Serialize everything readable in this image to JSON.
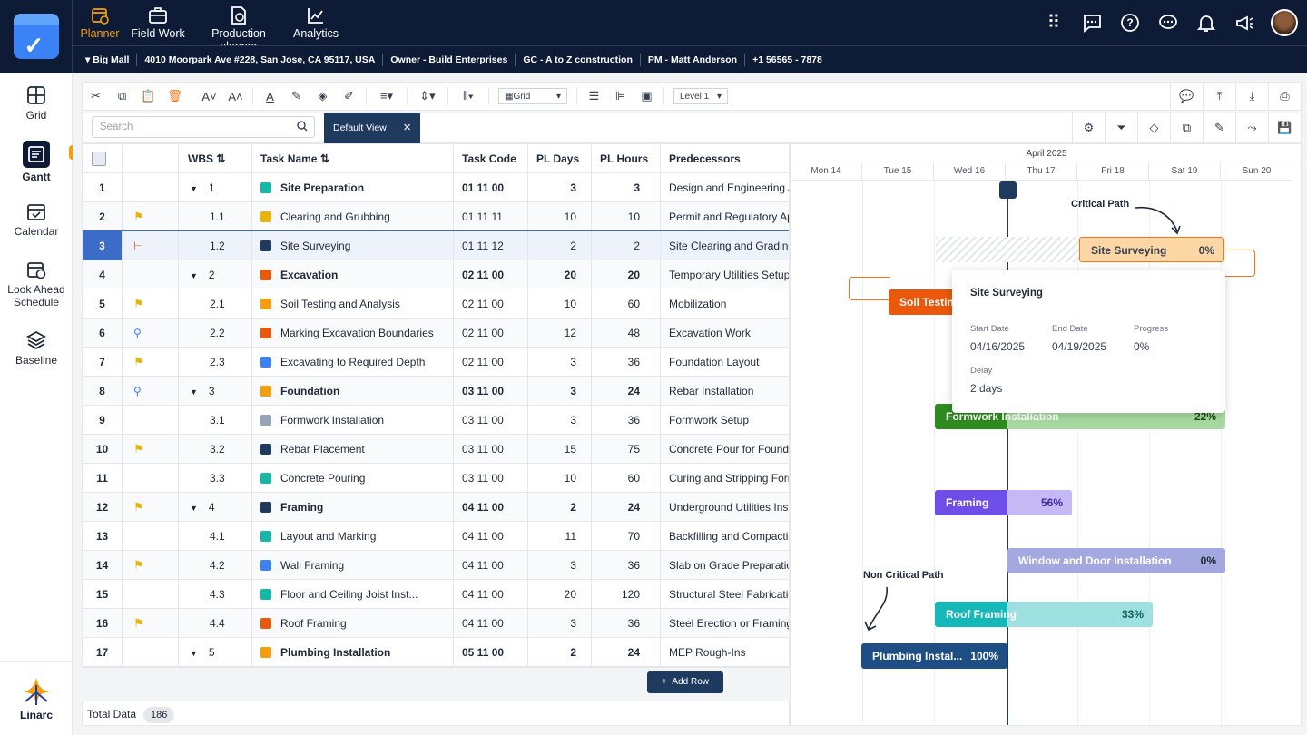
{
  "nav": {
    "tabs": [
      {
        "label": "Planner",
        "active": true
      },
      {
        "label": "Field Work"
      },
      {
        "label": "Production planner"
      },
      {
        "label": "Analytics"
      }
    ]
  },
  "project": {
    "name": "Big Mall",
    "address": "4010 Moorpark Ave #228, San Jose, CA 95117, USA",
    "owner": "Owner - Build Enterprises",
    "gc": "GC - A to Z construction",
    "pm": "PM -  Matt Anderson",
    "phone": "+1 56565 - 7878"
  },
  "sidebar": {
    "items": [
      {
        "label": "Grid"
      },
      {
        "label": "Gantt",
        "active": true
      },
      {
        "label": "Calendar"
      },
      {
        "label": "Look Ahead Schedule"
      },
      {
        "label": "Baseline"
      }
    ],
    "brand": "Linarc"
  },
  "toolbar": {
    "view_select": "Grid",
    "level_select": "Level 1"
  },
  "search": {
    "placeholder": "Search"
  },
  "view_chip": "Default View",
  "grid": {
    "headers": {
      "wbs": "WBS",
      "task_name": "Task Name",
      "task_code": "Task Code",
      "pl_days": "PL Days",
      "pl_hours": "PL Hours",
      "predecessors": "Predecessors"
    },
    "rows": [
      {
        "num": "1",
        "wbs": "1",
        "name": "Site Preparation",
        "code": "01 11 00",
        "days": "3",
        "hours": "3",
        "pred": "Design and Engineering A",
        "color": "#14b8a6",
        "parent": true,
        "icon": ""
      },
      {
        "num": "2",
        "wbs": "1.1",
        "name": "Clearing and Grubbing",
        "code": "01 11 11",
        "days": "10",
        "hours": "10",
        "pred": "Permit and Regulatory Ap",
        "color": "#eab308",
        "parent": false,
        "icon": "flag"
      },
      {
        "num": "3",
        "wbs": "1.2",
        "name": "Site Surveying",
        "code": "01 11 12",
        "days": "2",
        "hours": "2",
        "pred": "Site Clearing and Grading",
        "color": "#1e3a5f",
        "parent": false,
        "icon": "gantt",
        "selected": true
      },
      {
        "num": "4",
        "wbs": "2",
        "name": "Excavation",
        "code": "02 11 00",
        "days": "20",
        "hours": "20",
        "pred": "Temporary Utilities Setup",
        "color": "#ea580c",
        "parent": true,
        "icon": ""
      },
      {
        "num": "5",
        "wbs": "2.1",
        "name": "Soil Testing and Analysis",
        "code": "02 11 00",
        "days": "10",
        "hours": "60",
        "pred": "Mobilization",
        "color": "#f59e0b",
        "parent": false,
        "icon": "flag"
      },
      {
        "num": "6",
        "wbs": "2.2",
        "name": "Marking Excavation Boundaries",
        "code": "02 11 00",
        "days": "12",
        "hours": "48",
        "pred": "Excavation Work",
        "color": "#ea580c",
        "parent": false,
        "icon": "sign"
      },
      {
        "num": "7",
        "wbs": "2.3",
        "name": "Excavating to Required Depth",
        "code": "02 11 00",
        "days": "3",
        "hours": "36",
        "pred": "Foundation Layout",
        "color": "#3b82f6",
        "parent": false,
        "icon": "flag"
      },
      {
        "num": "8",
        "wbs": "3",
        "name": "Foundation",
        "code": "03 11 00",
        "days": "3",
        "hours": "24",
        "pred": "Rebar Installation",
        "color": "#f59e0b",
        "parent": true,
        "icon": "sign"
      },
      {
        "num": "9",
        "wbs": "3.1",
        "name": "Formwork Installation",
        "code": "03 11 00",
        "days": "3",
        "hours": "36",
        "pred": "Formwork Setup",
        "color": "#94a3b8",
        "parent": false,
        "icon": ""
      },
      {
        "num": "10",
        "wbs": "3.2",
        "name": "Rebar Placement",
        "code": "03 11 00",
        "days": "15",
        "hours": "75",
        "pred": "Concrete Pour for Founda",
        "color": "#1e3a5f",
        "parent": false,
        "icon": "flag"
      },
      {
        "num": "11",
        "wbs": "3.3",
        "name": "Concrete Pouring",
        "code": "03 11 00",
        "days": "10",
        "hours": "60",
        "pred": "Curing and Stripping Form",
        "color": "#14b8a6",
        "parent": false,
        "icon": ""
      },
      {
        "num": "12",
        "wbs": "4",
        "name": "Framing",
        "code": "04 11 00",
        "days": "2",
        "hours": "24",
        "pred": "Underground Utilities Inst",
        "color": "#1e3a5f",
        "parent": true,
        "icon": "flag"
      },
      {
        "num": "13",
        "wbs": "4.1",
        "name": "Layout and Marking",
        "code": "04 11 00",
        "days": "11",
        "hours": "70",
        "pred": "Backfilling and Compactio",
        "color": "#14b8a6",
        "parent": false,
        "icon": ""
      },
      {
        "num": "14",
        "wbs": "4.2",
        "name": "Wall Framing",
        "code": "04 11 00",
        "days": "3",
        "hours": "36",
        "pred": "Slab on Grade Preparation",
        "color": "#3b82f6",
        "parent": false,
        "icon": "flag"
      },
      {
        "num": "15",
        "wbs": "4.3",
        "name": "Floor and Ceiling Joist Inst...",
        "code": "04 11 00",
        "days": "20",
        "hours": "120",
        "pred": "Structural Steel Fabricatio",
        "color": "#14b8a6",
        "parent": false,
        "icon": ""
      },
      {
        "num": "16",
        "wbs": "4.4",
        "name": "Roof Framing",
        "code": "04 11 00",
        "days": "3",
        "hours": "36",
        "pred": "Steel Erection or Framing",
        "color": "#ea580c",
        "parent": false,
        "icon": "flag"
      },
      {
        "num": "17",
        "wbs": "5",
        "name": "Plumbing Installation",
        "code": "05 11 00",
        "days": "2",
        "hours": "24",
        "pred": "MEP Rough-Ins",
        "color": "#f59e0b",
        "parent": true,
        "icon": ""
      }
    ]
  },
  "add_row": "Add Row",
  "footer": {
    "label": "Total Data",
    "count": "186"
  },
  "gantt": {
    "month": "April 2025",
    "days": [
      "Mon 14",
      "Tue 15",
      "Wed 16",
      "Thu 17",
      "Fri 18",
      "Sat 19",
      "Sun 20"
    ],
    "bars": [
      {
        "label": "Site Surveying",
        "pct": "0%"
      },
      {
        "label": "Soil Testing",
        "pct": ""
      },
      {
        "label": "Formwork Installation",
        "pct": "22%"
      },
      {
        "label": "Framing",
        "pct": "56%"
      },
      {
        "label": "Window and Door Installation",
        "pct": "0%"
      },
      {
        "label": "Roof Framing",
        "pct": "33%"
      },
      {
        "label": "Plumbing Instal...",
        "pct": "100%"
      }
    ],
    "critical_label": "Critical Path",
    "noncritical_label": "Non Critical Path",
    "tooltip": {
      "title": "Site Surveying",
      "start_label": "Start Date",
      "start": "04/16/2025",
      "end_label": "End Date",
      "end": "04/19/2025",
      "progress_label": "Progress",
      "progress": "0%",
      "delay_label": "Delay",
      "delay": "2 days"
    }
  }
}
